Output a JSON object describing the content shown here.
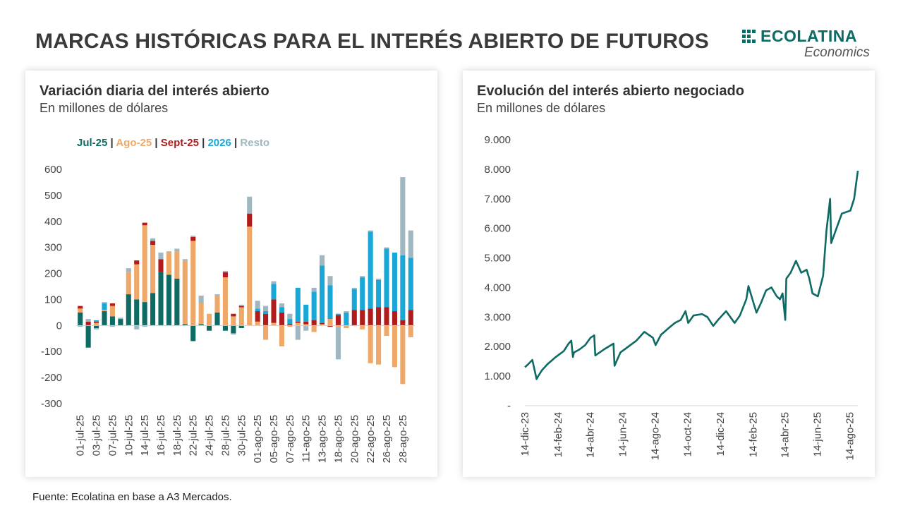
{
  "header": {
    "title": "MARCAS HISTÓRICAS PARA EL INTERÉS ABIERTO DE FUTUROS",
    "logo_name": "ECOLATINA",
    "logo_sub": "Economics"
  },
  "footer": {
    "source": "Fuente: Ecolatina en base a A3 Mercados."
  },
  "colors": {
    "jul": "#0e6b63",
    "ago": "#f0a868",
    "sept": "#b01c1c",
    "y2026": "#18a7d6",
    "resto": "#9fb7c1",
    "line": "#0e6b63",
    "brand": "#0e6b63"
  },
  "chart_data": [
    {
      "type": "bar",
      "stacked": true,
      "title": "Variación diaria del interés abierto",
      "subtitle": "En millones de dólares",
      "ylim": [
        -300,
        600
      ],
      "yticks": [
        "600",
        "500",
        "400",
        "300",
        "200",
        "100",
        "0",
        "-100",
        "-200",
        "-300"
      ],
      "legend": [
        {
          "name": "Jul-25",
          "color": "#0e6b63"
        },
        {
          "name": "Ago-25",
          "color": "#f0a868"
        },
        {
          "name": "Sept-25",
          "color": "#b01c1c"
        },
        {
          "name": "2026",
          "color": "#18a7d6"
        },
        {
          "name": "Resto",
          "color": "#9fb7c1"
        }
      ],
      "legend_separator": "|",
      "legend_position": "top-left",
      "x_tick_labels": [
        "01-jul-25",
        "03-jul-25",
        "07-jul-25",
        "10-jul-25",
        "14-jul-25",
        "16-jul-25",
        "18-jul-25",
        "22-jul-25",
        "24-jul-25",
        "28-jul-25",
        "30-jul-25",
        "01-ago-25",
        "05-ago-25",
        "07-ago-25",
        "11-ago-25",
        "13-ago-25",
        "18-ago-25",
        "20-ago-25",
        "22-ago-25",
        "26-ago-25",
        "28-ago-25"
      ],
      "x_tick_every": 2,
      "series": [
        {
          "name": "Jul-25",
          "values": [
            50,
            -85,
            -10,
            55,
            35,
            25,
            120,
            100,
            90,
            125,
            205,
            195,
            180,
            5,
            -60,
            5,
            -20,
            50,
            -20,
            -30,
            -10,
            0,
            0,
            0,
            0,
            0,
            0,
            0,
            0,
            0,
            0,
            0,
            0,
            0,
            0,
            0,
            0,
            0,
            0,
            0,
            0,
            0
          ]
        },
        {
          "name": "Ago-25",
          "values": [
            15,
            0,
            10,
            5,
            40,
            0,
            85,
            135,
            295,
            185,
            0,
            85,
            105,
            245,
            325,
            80,
            45,
            65,
            185,
            35,
            70,
            380,
            15,
            -55,
            10,
            -80,
            -5,
            10,
            5,
            -25,
            5,
            25,
            -5,
            -10,
            0,
            -15,
            -145,
            -150,
            -40,
            -160,
            -225,
            -45
          ]
        },
        {
          "name": "Sept-25",
          "values": [
            10,
            15,
            5,
            0,
            10,
            0,
            0,
            15,
            10,
            15,
            50,
            0,
            0,
            0,
            15,
            0,
            0,
            0,
            20,
            10,
            5,
            50,
            40,
            45,
            90,
            50,
            5,
            5,
            10,
            20,
            5,
            -5,
            40,
            0,
            60,
            60,
            65,
            70,
            70,
            55,
            20,
            60
          ]
        },
        {
          "name": "2026",
          "values": [
            0,
            0,
            5,
            25,
            0,
            0,
            0,
            0,
            0,
            0,
            0,
            0,
            0,
            0,
            0,
            0,
            0,
            0,
            0,
            0,
            0,
            0,
            10,
            10,
            60,
            20,
            20,
            130,
            65,
            110,
            220,
            130,
            5,
            50,
            80,
            125,
            295,
            105,
            225,
            225,
            250,
            200
          ]
        },
        {
          "name": "Resto",
          "values": [
            -5,
            10,
            -5,
            5,
            -5,
            5,
            15,
            -15,
            -5,
            10,
            25,
            5,
            10,
            5,
            5,
            30,
            0,
            5,
            5,
            -5,
            5,
            65,
            30,
            20,
            10,
            15,
            20,
            -55,
            -20,
            15,
            40,
            35,
            -125,
            5,
            5,
            5,
            5,
            5,
            5,
            0,
            300,
            105
          ]
        }
      ]
    },
    {
      "type": "line",
      "title": "Evolución del interés abierto negociado",
      "subtitle": "En millones de dólares",
      "ylim": [
        0,
        9000
      ],
      "yticks": [
        "9.000",
        "8.000",
        "7.000",
        "6.000",
        "5.000",
        "4.000",
        "3.000",
        "2.000",
        "1.000",
        "-"
      ],
      "x_tick_labels": [
        "14-dic-23",
        "14-feb-24",
        "14-abr-24",
        "14-jun-24",
        "14-ago-24",
        "14-oct-24",
        "14-dic-24",
        "14-feb-25",
        "14-abr-25",
        "14-jun-25",
        "14-ago-25"
      ],
      "x_tick_every_months": 2,
      "x": [
        "2023-12-14",
        "2023-12-20",
        "2023-12-28",
        "2024-01-05",
        "2024-01-08",
        "2024-01-15",
        "2024-01-25",
        "2024-02-10",
        "2024-02-25",
        "2024-03-05",
        "2024-03-10",
        "2024-03-13",
        "2024-03-15",
        "2024-03-25",
        "2024-04-05",
        "2024-04-15",
        "2024-04-22",
        "2024-04-24",
        "2024-05-10",
        "2024-05-28",
        "2024-05-30",
        "2024-06-10",
        "2024-06-25",
        "2024-07-10",
        "2024-07-25",
        "2024-08-10",
        "2024-08-15",
        "2024-08-25",
        "2024-09-10",
        "2024-09-20",
        "2024-10-01",
        "2024-10-10",
        "2024-10-15",
        "2024-10-25",
        "2024-11-10",
        "2024-11-20",
        "2024-12-01",
        "2024-12-10",
        "2024-12-25",
        "2025-01-10",
        "2025-01-20",
        "2025-02-01",
        "2025-02-05",
        "2025-02-20",
        "2025-03-01",
        "2025-03-10",
        "2025-03-20",
        "2025-03-30",
        "2025-04-05",
        "2025-04-10",
        "2025-04-15",
        "2025-04-17",
        "2025-04-25",
        "2025-05-05",
        "2025-05-15",
        "2025-05-25",
        "2025-05-30",
        "2025-06-05",
        "2025-06-15",
        "2025-06-25",
        "2025-07-01",
        "2025-07-08",
        "2025-07-10",
        "2025-07-20",
        "2025-07-30",
        "2025-08-15",
        "2025-08-22",
        "2025-08-29"
      ],
      "y": [
        1300,
        1400,
        1550,
        900,
        1000,
        1200,
        1400,
        1650,
        1850,
        2100,
        2200,
        1650,
        1800,
        1900,
        2050,
        2300,
        2380,
        1700,
        1900,
        2100,
        1350,
        1800,
        2000,
        2200,
        2500,
        2300,
        2050,
        2400,
        2650,
        2800,
        2900,
        3200,
        2800,
        3050,
        3100,
        3000,
        2700,
        2900,
        3200,
        2800,
        3050,
        3600,
        4050,
        3150,
        3500,
        3900,
        4000,
        3700,
        3600,
        3800,
        2900,
        4300,
        4500,
        4900,
        4500,
        4600,
        4300,
        3800,
        3700,
        4400,
        5900,
        7000,
        5500,
        6000,
        6500,
        6600,
        7000,
        7950
      ]
    }
  ]
}
